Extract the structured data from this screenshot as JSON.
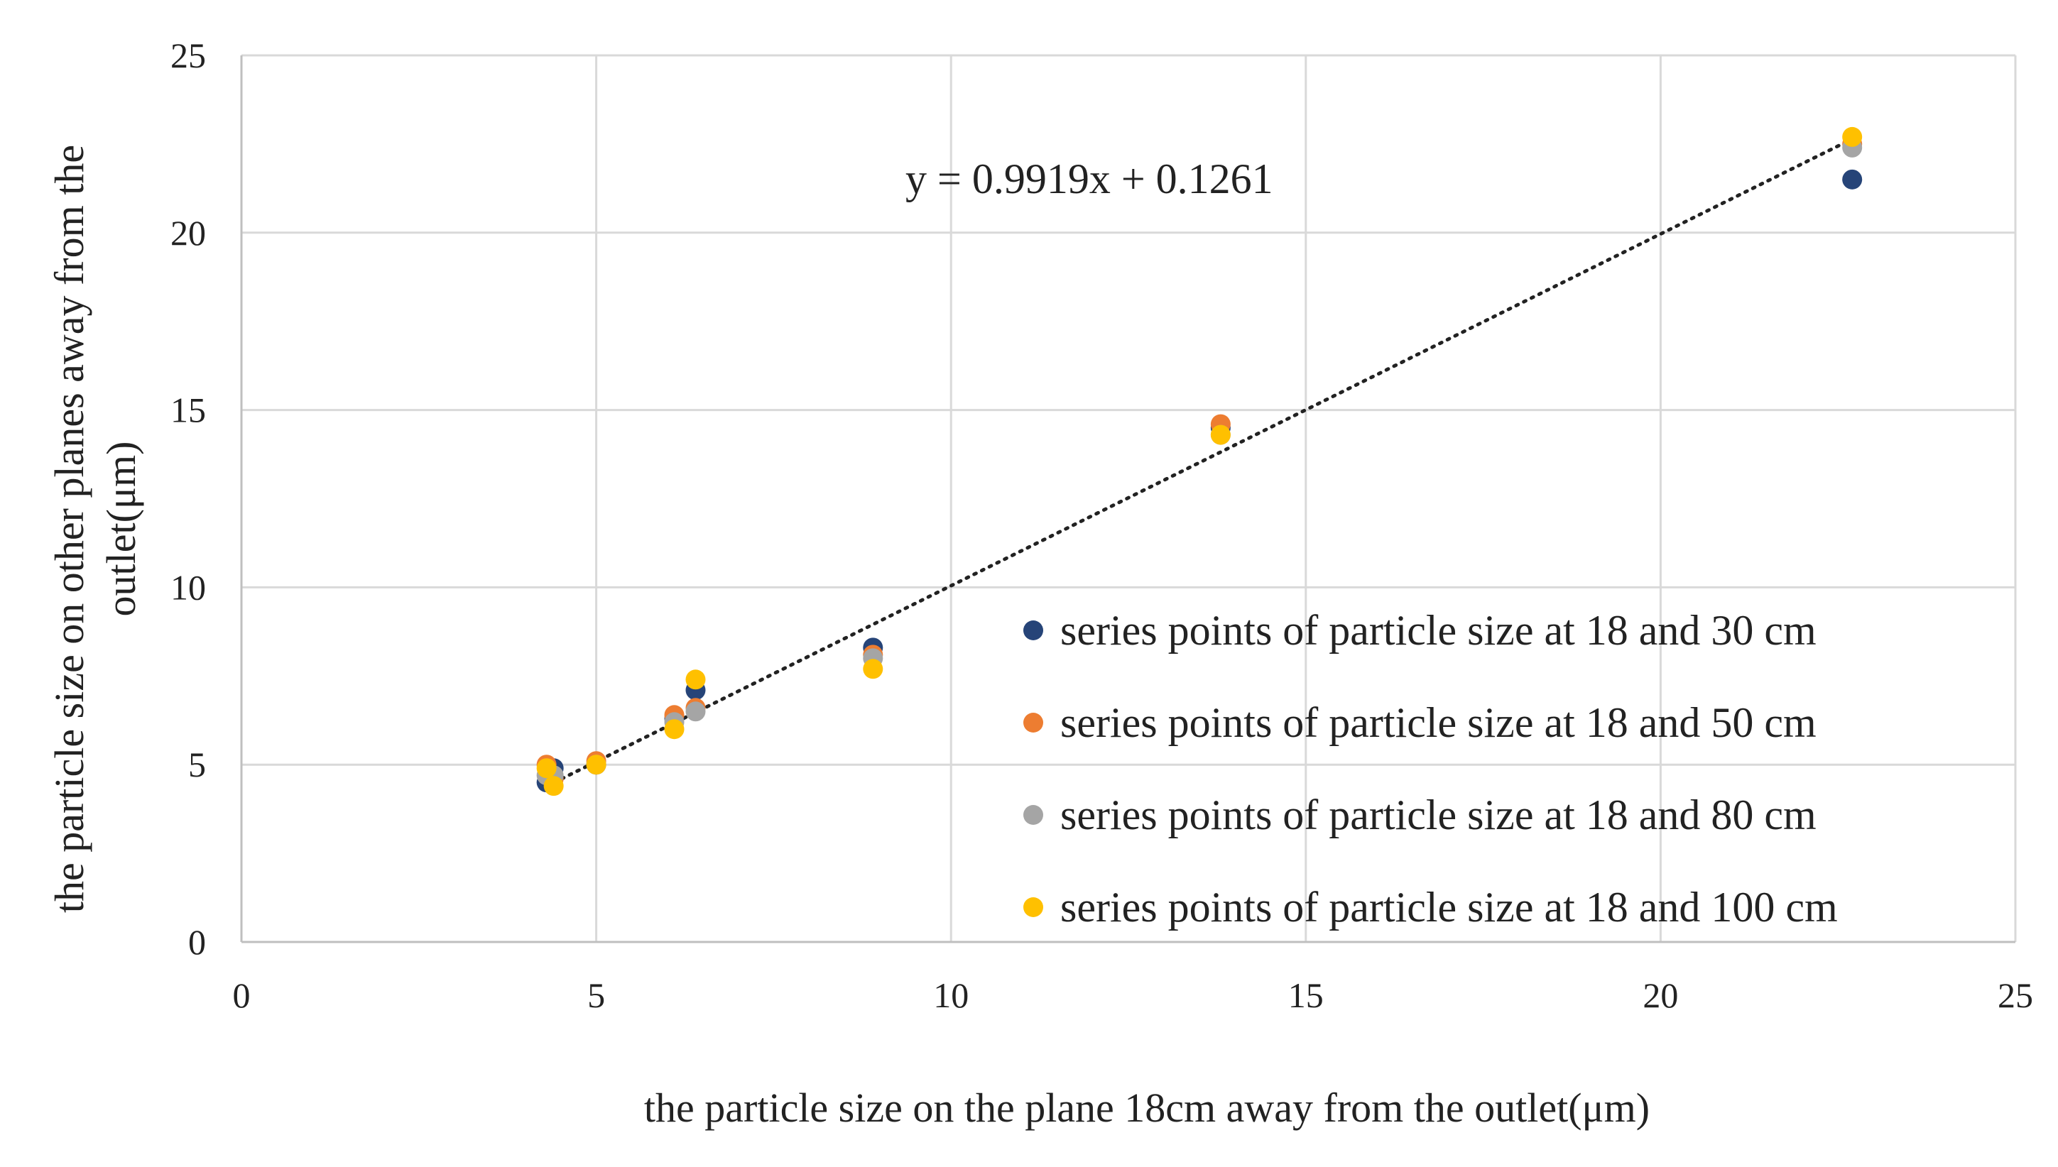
{
  "chart_data": {
    "type": "scatter",
    "title": "",
    "xlabel": "the particle size on the plane 18cm away from the outlet(μm)",
    "ylabel_lines": [
      "the particle size on other planes away  from the",
      "outlet(μm)"
    ],
    "xlim": [
      0,
      25
    ],
    "ylim": [
      0,
      25
    ],
    "xticks": [
      0,
      5,
      10,
      15,
      20,
      25
    ],
    "yticks": [
      0,
      5,
      10,
      15,
      20,
      25
    ],
    "grid": true,
    "legend_position": "bottom-right",
    "x": [
      4.3,
      4.4,
      5.0,
      6.1,
      6.4,
      8.9,
      13.8,
      22.7
    ],
    "series": [
      {
        "name": "series points of particle size at 18 and 30 cm",
        "color": "#264478",
        "values": [
          4.5,
          4.9,
          5.0,
          6.3,
          7.1,
          8.3,
          14.5,
          21.5
        ]
      },
      {
        "name": "series points of particle size at 18 and 50 cm",
        "color": "#ED7D31",
        "values": [
          5.0,
          4.6,
          5.1,
          6.4,
          6.6,
          8.1,
          14.6,
          22.5
        ]
      },
      {
        "name": "series points of particle size at 18 and 80 cm",
        "color": "#A5A5A5",
        "values": [
          4.7,
          4.7,
          5.0,
          6.2,
          6.5,
          8.0,
          14.3,
          22.4
        ]
      },
      {
        "name": "series points of particle size at 18 and 100 cm",
        "color": "#FFC000",
        "values": [
          4.9,
          4.4,
          5.0,
          6.0,
          7.4,
          7.7,
          14.3,
          22.7
        ]
      }
    ],
    "trendline": {
      "label": "y = 0.9919x + 0.1261",
      "slope": 0.9919,
      "intercept": 0.1261,
      "x_range": [
        4.3,
        22.7
      ],
      "color": "#222222"
    },
    "axis_color": "#BFBFBF",
    "grid_color": "#D9D9D9"
  }
}
